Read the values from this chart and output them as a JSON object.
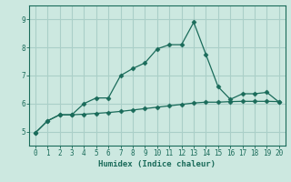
{
  "xlabel": "Humidex (Indice chaleur)",
  "background_color": "#cce8e0",
  "grid_color": "#aacfc8",
  "line_color": "#1a6b5a",
  "x_values": [
    0,
    1,
    2,
    3,
    4,
    5,
    6,
    7,
    8,
    9,
    10,
    11,
    12,
    13,
    14,
    15,
    16,
    17,
    18,
    19,
    20
  ],
  "line1_y": [
    4.95,
    5.38,
    5.6,
    5.6,
    6.0,
    6.2,
    6.2,
    7.0,
    7.25,
    7.45,
    7.95,
    8.1,
    8.1,
    8.9,
    7.75,
    6.6,
    6.15,
    6.35,
    6.35,
    6.4,
    6.05
  ],
  "line2_y": [
    4.95,
    5.38,
    5.6,
    5.6,
    5.62,
    5.65,
    5.68,
    5.72,
    5.77,
    5.82,
    5.87,
    5.92,
    5.97,
    6.02,
    6.05,
    6.05,
    6.07,
    6.08,
    6.08,
    6.08,
    6.07
  ],
  "xlim": [
    -0.5,
    20.5
  ],
  "ylim": [
    4.5,
    9.5
  ],
  "yticks": [
    5,
    6,
    7,
    8,
    9
  ],
  "xticks": [
    0,
    1,
    2,
    3,
    4,
    5,
    6,
    7,
    8,
    9,
    10,
    11,
    12,
    13,
    14,
    15,
    16,
    17,
    18,
    19,
    20
  ]
}
